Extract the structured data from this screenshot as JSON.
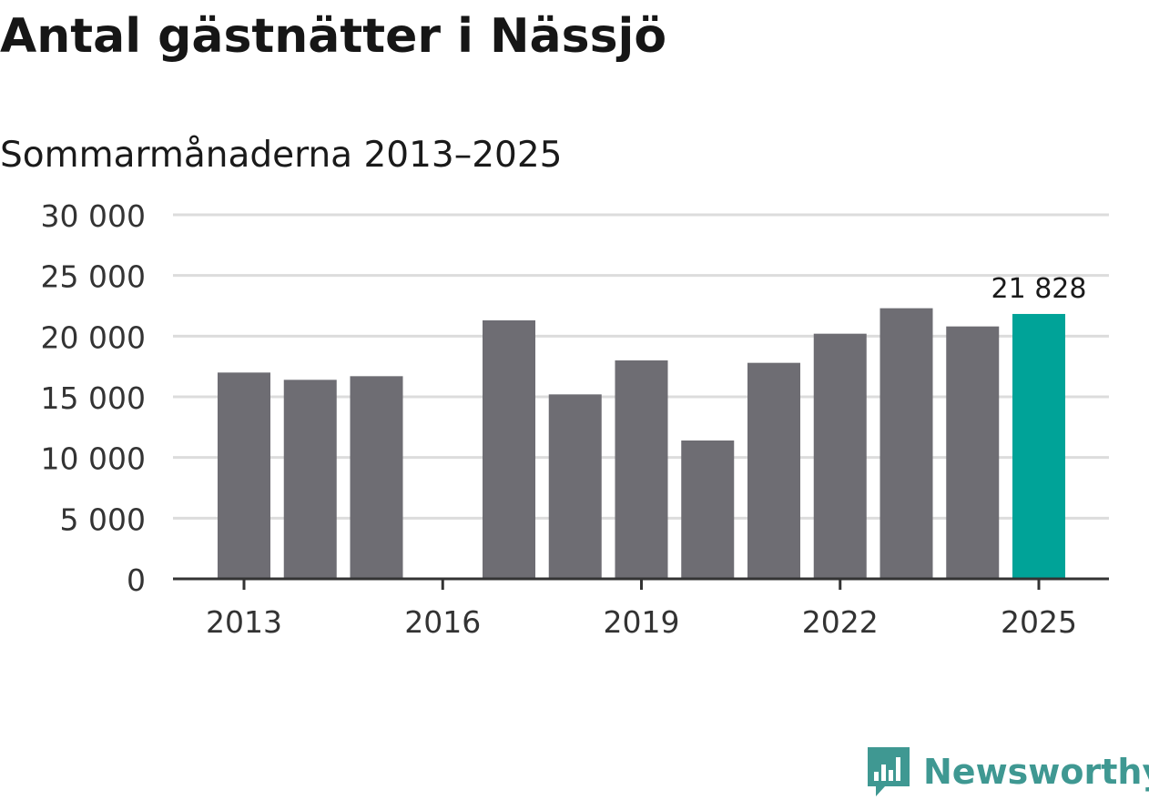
{
  "header": {
    "title": "Antal gästnätter i Nässjö",
    "subtitle": "Sommarmånaderna 2013–2025"
  },
  "brand": {
    "name": "Newsworthy",
    "color": "#3f9892",
    "icon": "newsworthy-logo-icon"
  },
  "colors": {
    "bar": "#6e6d73",
    "highlight": "#00a398",
    "grid": "#dcdcdc",
    "axis": "#333333"
  },
  "chart_data": {
    "type": "bar",
    "title": "Antal gästnätter i Nässjö",
    "subtitle": "Sommarmånaderna 2013–2025",
    "xlabel": "",
    "ylabel": "",
    "x": [
      2013,
      2014,
      2015,
      2016,
      2017,
      2018,
      2019,
      2020,
      2021,
      2022,
      2023,
      2024,
      2025
    ],
    "values": [
      17000,
      16400,
      16700,
      null,
      21300,
      15200,
      18000,
      11400,
      17800,
      20200,
      22300,
      20800,
      21828
    ],
    "highlight_x": 2025,
    "ylim": [
      0,
      30000
    ],
    "yticks": [
      0,
      5000,
      10000,
      15000,
      20000,
      25000,
      30000
    ],
    "ytick_labels": [
      "0",
      "5 000",
      "10 000",
      "15 000",
      "20 000",
      "25 000",
      "30 000"
    ],
    "xticks": [
      2013,
      2016,
      2019,
      2022,
      2025
    ],
    "xtick_labels": [
      "2013",
      "2016",
      "2019",
      "2022",
      "2025"
    ],
    "annotations": [
      {
        "x": 2025,
        "text": "21 828"
      }
    ],
    "grid": true,
    "legend": "none"
  }
}
